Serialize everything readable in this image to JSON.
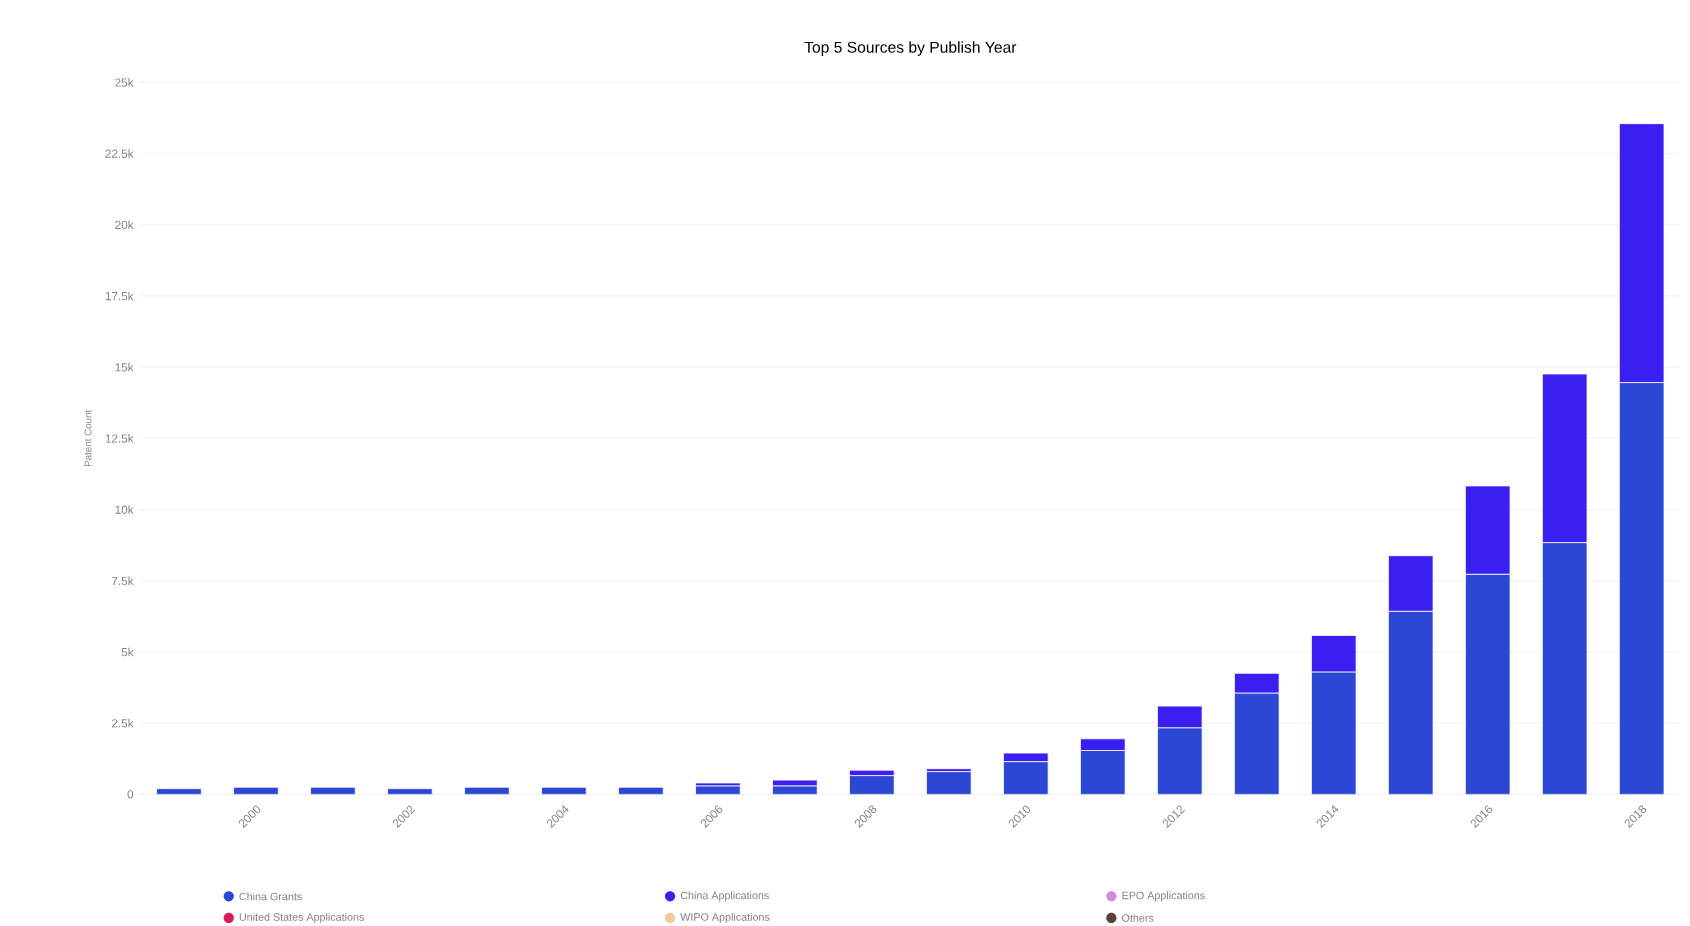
{
  "chart_data": {
    "type": "bar",
    "title": "Top 5 Sources by Publish Year",
    "ylabel": "Patent Count",
    "stacked": true,
    "grid": "y",
    "legend": "bottom",
    "categories": [
      null,
      "2000",
      null,
      "2002",
      null,
      "2004",
      null,
      "2006",
      null,
      "2008",
      null,
      "2010",
      null,
      "2012",
      null,
      "2014",
      null,
      "2016",
      null,
      "2018"
    ],
    "series": [
      {
        "name": "China Grants",
        "color": "#2b47d4",
        "values": [
          200,
          250,
          250,
          200,
          250,
          250,
          250,
          300,
          300,
          660,
          800,
          1150,
          1540,
          2340,
          3560,
          4300,
          6430,
          7730,
          8840,
          14460
        ]
      },
      {
        "name": "China Applications",
        "color": "#3a1ff0",
        "values": [
          null,
          null,
          null,
          null,
          null,
          null,
          null,
          100,
          200,
          190,
          100,
          300,
          410,
          760,
          690,
          1280,
          1950,
          3100,
          5920,
          9090
        ]
      },
      {
        "name": "EPO Applications",
        "color": "#d08ae0",
        "values": [
          null,
          null,
          null,
          null,
          null,
          null,
          null,
          null,
          null,
          null,
          null,
          null,
          null,
          null,
          null,
          null,
          null,
          null,
          null,
          null
        ]
      },
      {
        "name": "United States Applications",
        "color": "#d81b60",
        "values": [
          null,
          null,
          null,
          null,
          null,
          null,
          null,
          null,
          null,
          null,
          null,
          null,
          null,
          null,
          null,
          null,
          null,
          null,
          null,
          null
        ]
      },
      {
        "name": "WIPO Applications",
        "color": "#f5c99a",
        "values": [
          null,
          null,
          null,
          null,
          null,
          null,
          null,
          null,
          null,
          null,
          null,
          null,
          null,
          null,
          null,
          null,
          null,
          null,
          null,
          null
        ]
      },
      {
        "name": "Others",
        "color": "#5d4037",
        "values": [
          null,
          null,
          null,
          null,
          null,
          null,
          null,
          null,
          null,
          null,
          null,
          null,
          null,
          null,
          null,
          null,
          null,
          null,
          null,
          null
        ]
      }
    ],
    "ylim": [
      0,
      25000
    ],
    "yticks": [
      0,
      {
        "value": 2500,
        "label": "2.5k"
      },
      {
        "value": 5000,
        "label": "5k"
      },
      {
        "value": 7500,
        "label": "7.5k"
      },
      {
        "value": 10000,
        "label": "10k"
      },
      {
        "value": 12500,
        "label": "12.5k"
      },
      {
        "value": 15000,
        "label": "15k"
      },
      {
        "value": 17500,
        "label": "17.5k"
      },
      {
        "value": 20000,
        "label": "20k"
      },
      {
        "value": 22500,
        "label": "22.5k"
      },
      {
        "value": 25000,
        "label": "25k"
      }
    ]
  }
}
